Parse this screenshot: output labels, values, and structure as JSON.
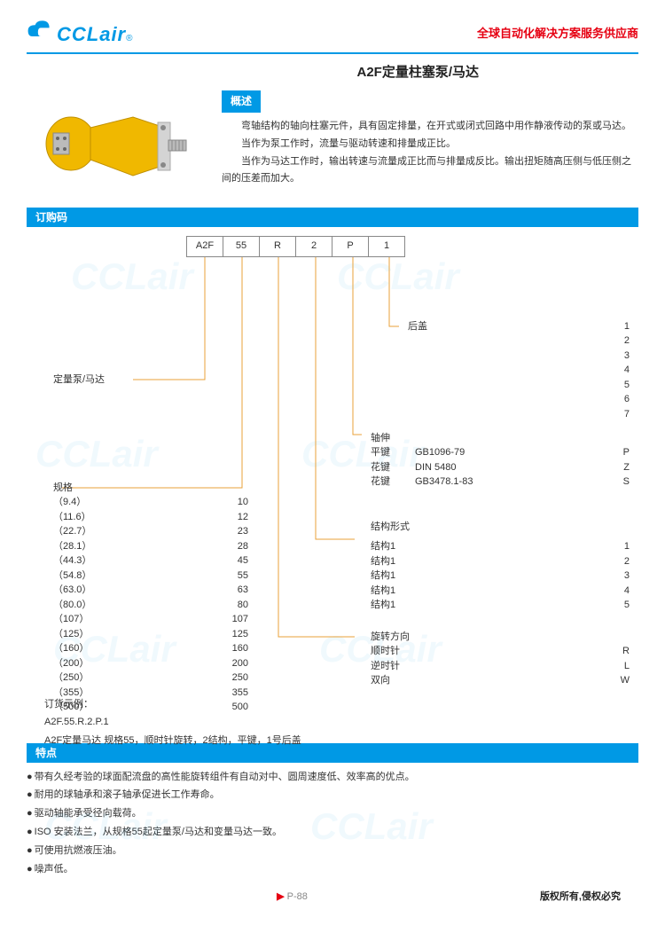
{
  "header": {
    "logo_text": "CCLair",
    "tagline": "全球自动化解决方案服务供应商"
  },
  "title": "A2F定量柱塞泵/马达",
  "overview": {
    "heading": "概述",
    "p1": "弯轴结构的轴向柱塞元件，具有固定排量，在开式或闭式回路中用作静液传动的泵或马达。",
    "p2": "当作为泵工作时，流量与驱动转速和排量成正比。",
    "p3": "当作为马达工作时，输出转速与流量成正比而与排量成反比。输出扭矩随高压侧与低压侧之间的压差而加大。"
  },
  "order": {
    "heading": "订购码",
    "boxes": [
      "A2F",
      "55",
      "R",
      "2",
      "P",
      "1"
    ],
    "root_label": "定量泵/马达",
    "back_cover": {
      "label": "后盖",
      "values": [
        "1",
        "2",
        "3",
        "4",
        "5",
        "6",
        "7"
      ]
    },
    "shaft": {
      "heading": "轴伸",
      "rows": [
        {
          "l": "平键",
          "m": "GB1096-79",
          "r": "P"
        },
        {
          "l": "花键",
          "m": "DIN 5480",
          "r": "Z"
        },
        {
          "l": "花键",
          "m": "GB3478.1-83",
          "r": "S"
        }
      ]
    },
    "spec": {
      "heading": "规格",
      "rows": [
        {
          "l": "（9.4）",
          "r": "10"
        },
        {
          "l": "（11.6）",
          "r": "12"
        },
        {
          "l": "（22.7）",
          "r": "23"
        },
        {
          "l": "（28.1）",
          "r": "28"
        },
        {
          "l": "（44.3）",
          "r": "45"
        },
        {
          "l": "（54.8）",
          "r": "55"
        },
        {
          "l": "（63.0）",
          "r": "63"
        },
        {
          "l": "（80.0）",
          "r": "80"
        },
        {
          "l": "（107）",
          "r": "107"
        },
        {
          "l": "（125）",
          "r": "125"
        },
        {
          "l": "（160）",
          "r": "160"
        },
        {
          "l": "（200）",
          "r": "200"
        },
        {
          "l": "（250）",
          "r": "250"
        },
        {
          "l": "（355）",
          "r": "355"
        },
        {
          "l": "（500）",
          "r": "500"
        }
      ]
    },
    "structure": {
      "heading": "结构形式",
      "rows": [
        {
          "l": "结构1",
          "r": "1"
        },
        {
          "l": "结构1",
          "r": "2"
        },
        {
          "l": "结构1",
          "r": "3"
        },
        {
          "l": "结构1",
          "r": "4"
        },
        {
          "l": "结构1",
          "r": "5"
        }
      ]
    },
    "rotation": {
      "heading": "旋转方向",
      "rows": [
        {
          "l": "顺时针",
          "r": "R"
        },
        {
          "l": "逆时针",
          "r": "L"
        },
        {
          "l": "双向",
          "r": "W"
        }
      ]
    },
    "example": {
      "heading": "订货示例：",
      "code": "A2F.55.R.2.P.1",
      "desc": "A2F定量马达  规格55，顺时针旋转，2结构，平键，1号后盖"
    }
  },
  "features": {
    "heading": "特点",
    "items": [
      "带有久经考验的球面配流盘的高性能旋转组件有自动对中、圆周速度低、效率高的优点。",
      "耐用的球轴承和滚子轴承促进长工作寿命。",
      "驱动轴能承受径向载荷。",
      "ISO 安装法兰，从规格55起定量泵/马达和变量马达一致。",
      "可使用抗燃液压油。",
      "噪声低。"
    ]
  },
  "footer": {
    "page": "P-88",
    "copyright": "版权所有,侵权必究"
  },
  "colors": {
    "brand": "#0099e5",
    "accent": "#e60012",
    "line": "#e8a23a"
  },
  "watermark": "CCLair"
}
